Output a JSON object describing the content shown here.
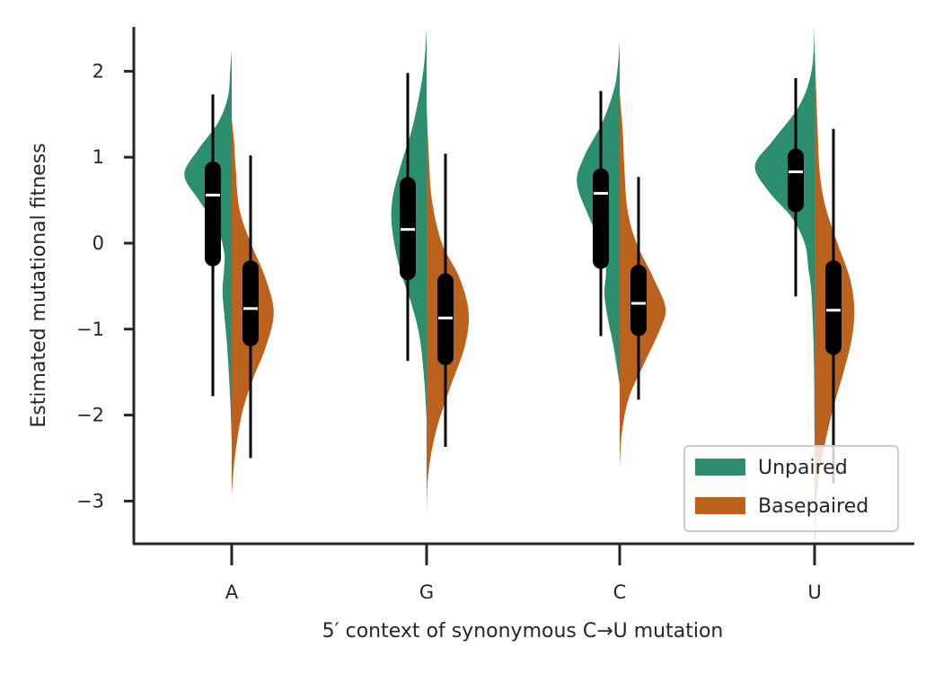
{
  "chart_data": {
    "type": "violin",
    "split": true,
    "xlabel": "5′ context of synonymous C→U mutation",
    "ylabel": "Estimated mutational fitness",
    "categories": [
      "A",
      "G",
      "C",
      "U"
    ],
    "ylim": [
      -3.5,
      2.5
    ],
    "yticks": [
      2,
      1,
      0,
      -1,
      -2,
      -3
    ],
    "ytick_labels": [
      "2",
      "1",
      "0",
      "−1",
      "−2",
      "−3"
    ],
    "grid": false,
    "legend_position": "lower right",
    "series": [
      {
        "name": "Unpaired",
        "color": "#2a8e6f",
        "side": "left",
        "violins": [
          {
            "range": [
              -2.3,
              2.25
            ],
            "median": 0.56,
            "q1": -0.27,
            "q3": 0.95,
            "whisker": [
              -1.78,
              1.73
            ],
            "density": [
              [
                -2.3,
                0
              ],
              [
                -1.8,
                0.02
              ],
              [
                -1.2,
                0.06
              ],
              [
                -0.8,
                0.1
              ],
              [
                -0.55,
                0.12
              ],
              [
                -0.3,
                0.1
              ],
              [
                -0.1,
                0.1
              ],
              [
                0.2,
                0.2
              ],
              [
                0.5,
                0.43
              ],
              [
                0.8,
                0.62
              ],
              [
                1.1,
                0.43
              ],
              [
                1.4,
                0.18
              ],
              [
                1.7,
                0.05
              ],
              [
                2.0,
                0.02
              ],
              [
                2.25,
                0
              ]
            ]
          },
          {
            "range": [
              -2.05,
              2.5
            ],
            "median": 0.16,
            "q1": -0.43,
            "q3": 0.77,
            "whisker": [
              -1.37,
              1.98
            ],
            "density": [
              [
                -2.05,
                0
              ],
              [
                -1.6,
                0.03
              ],
              [
                -1.1,
                0.09
              ],
              [
                -0.7,
                0.2
              ],
              [
                -0.3,
                0.35
              ],
              [
                0.15,
                0.45
              ],
              [
                0.5,
                0.45
              ],
              [
                0.9,
                0.34
              ],
              [
                1.3,
                0.2
              ],
              [
                1.7,
                0.1
              ],
              [
                2.1,
                0.03
              ],
              [
                2.5,
                0
              ]
            ]
          },
          {
            "range": [
              -1.65,
              2.35
            ],
            "median": 0.58,
            "q1": -0.3,
            "q3": 0.87,
            "whisker": [
              -1.08,
              1.77
            ],
            "density": [
              [
                -1.65,
                0
              ],
              [
                -1.2,
                0.08
              ],
              [
                -0.9,
                0.15
              ],
              [
                -0.6,
                0.2
              ],
              [
                -0.35,
                0.18
              ],
              [
                -0.1,
                0.2
              ],
              [
                0.3,
                0.4
              ],
              [
                0.7,
                0.56
              ],
              [
                1.0,
                0.47
              ],
              [
                1.4,
                0.23
              ],
              [
                1.8,
                0.07
              ],
              [
                2.1,
                0.02
              ],
              [
                2.35,
                0
              ]
            ]
          },
          {
            "range": [
              -2.2,
              2.5
            ],
            "median": 0.83,
            "q1": 0.36,
            "q3": 1.1,
            "whisker": [
              -0.62,
              1.92
            ],
            "density": [
              [
                -2.2,
                0
              ],
              [
                -1.3,
                0.01
              ],
              [
                -0.6,
                0.04
              ],
              [
                -0.3,
                0.08
              ],
              [
                0.0,
                0.13
              ],
              [
                0.3,
                0.3
              ],
              [
                0.6,
                0.6
              ],
              [
                0.9,
                0.78
              ],
              [
                1.2,
                0.54
              ],
              [
                1.6,
                0.2
              ],
              [
                2.0,
                0.04
              ],
              [
                2.5,
                0
              ]
            ]
          }
        ]
      },
      {
        "name": "Basepaired",
        "color": "#bc621f",
        "side": "right",
        "violins": [
          {
            "range": [
              -2.92,
              1.45
            ],
            "median": -0.76,
            "q1": -1.2,
            "q3": -0.2,
            "whisker": [
              -2.5,
              1.02
            ],
            "density": [
              [
                -2.92,
                0
              ],
              [
                -2.5,
                0.04
              ],
              [
                -2.0,
                0.13
              ],
              [
                -1.6,
                0.27
              ],
              [
                -1.2,
                0.45
              ],
              [
                -0.8,
                0.55
              ],
              [
                -0.4,
                0.44
              ],
              [
                0.0,
                0.25
              ],
              [
                0.4,
                0.1
              ],
              [
                0.9,
                0.05
              ],
              [
                1.2,
                0.03
              ],
              [
                1.45,
                0
              ]
            ]
          },
          {
            "range": [
              -3.2,
              1.62
            ],
            "median": -0.87,
            "q1": -1.42,
            "q3": -0.35,
            "whisker": [
              -2.37,
              1.04
            ],
            "density": [
              [
                -3.2,
                0
              ],
              [
                -2.7,
                0.02
              ],
              [
                -2.2,
                0.12
              ],
              [
                -1.7,
                0.3
              ],
              [
                -1.2,
                0.5
              ],
              [
                -0.8,
                0.55
              ],
              [
                -0.4,
                0.43
              ],
              [
                0.0,
                0.2
              ],
              [
                0.5,
                0.07
              ],
              [
                1.0,
                0.03
              ],
              [
                1.62,
                0
              ]
            ]
          },
          {
            "range": [
              -2.6,
              1.75
            ],
            "median": -0.7,
            "q1": -1.08,
            "q3": -0.25,
            "whisker": [
              -1.82,
              0.77
            ],
            "density": [
              [
                -2.6,
                0
              ],
              [
                -2.2,
                0.03
              ],
              [
                -1.8,
                0.12
              ],
              [
                -1.4,
                0.32
              ],
              [
                -1.0,
                0.53
              ],
              [
                -0.75,
                0.6
              ],
              [
                -0.4,
                0.44
              ],
              [
                0.0,
                0.22
              ],
              [
                0.4,
                0.1
              ],
              [
                0.9,
                0.06
              ],
              [
                1.3,
                0.04
              ],
              [
                1.75,
                0
              ]
            ]
          },
          {
            "range": [
              -3.5,
              2.3
            ],
            "median": -0.78,
            "q1": -1.3,
            "q3": -0.2,
            "whisker": [
              -2.8,
              1.33
            ],
            "density": [
              [
                -3.5,
                0
              ],
              [
                -2.9,
                0.03
              ],
              [
                -2.4,
                0.12
              ],
              [
                -1.9,
                0.25
              ],
              [
                -1.5,
                0.38
              ],
              [
                -1.1,
                0.49
              ],
              [
                -0.75,
                0.52
              ],
              [
                -0.4,
                0.46
              ],
              [
                0.0,
                0.3
              ],
              [
                0.4,
                0.15
              ],
              [
                0.8,
                0.07
              ],
              [
                1.3,
                0.04
              ],
              [
                1.8,
                0.02
              ],
              [
                2.3,
                0
              ]
            ]
          }
        ]
      }
    ]
  }
}
